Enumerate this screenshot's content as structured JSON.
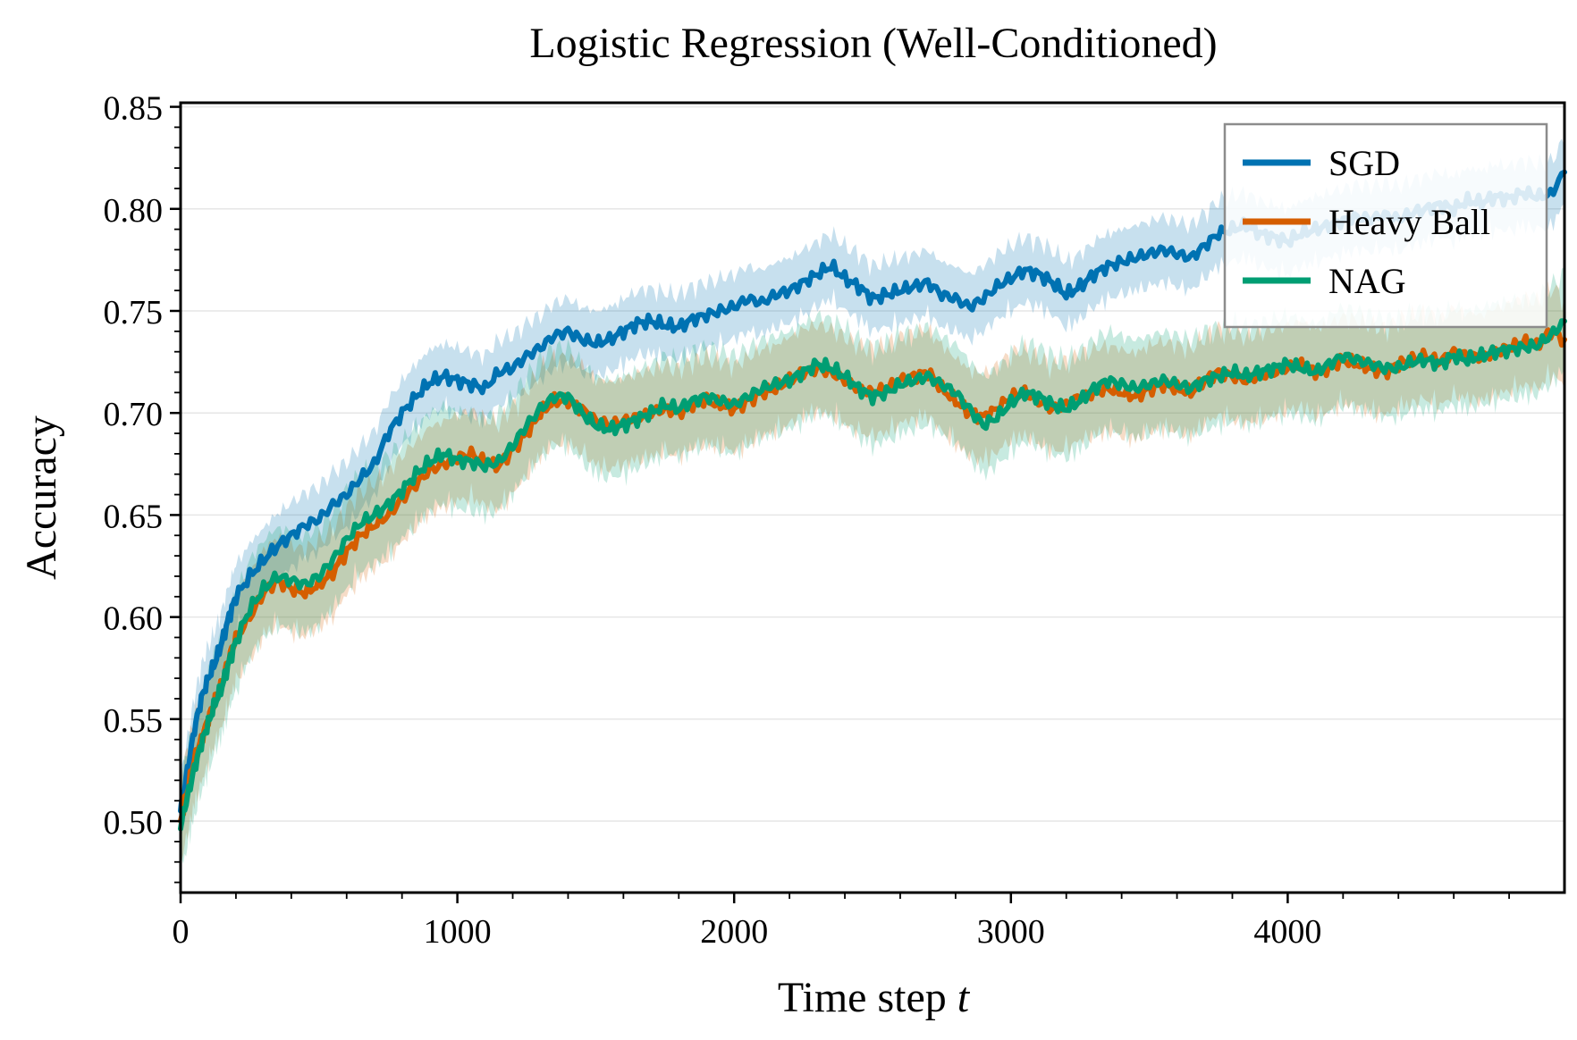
{
  "chart_data": {
    "type": "line",
    "title": "Logistic Regression (Well-Conditioned)",
    "xlabel": "Time step",
    "xlabel_var": "t",
    "ylabel": "Accuracy",
    "xlim": [
      0,
      5000
    ],
    "ylim": [
      0.465,
      0.852
    ],
    "xticks": [
      0,
      1000,
      2000,
      3000,
      4000
    ],
    "xtick_labels": [
      "0",
      "1000",
      "2000",
      "3000",
      "4000"
    ],
    "yticks": [
      0.5,
      0.55,
      0.6,
      0.65,
      0.7,
      0.75,
      0.8,
      0.85
    ],
    "ytick_labels": [
      "0.50",
      "0.55",
      "0.60",
      "0.65",
      "0.70",
      "0.75",
      "0.80",
      "0.85"
    ],
    "grid": "horizontal",
    "legend_position": "top-right",
    "series": [
      {
        "name": "SGD",
        "color": "#0072B2",
        "band": 0.012,
        "x": [
          0,
          25,
          50,
          75,
          100,
          125,
          150,
          175,
          200,
          250,
          300,
          350,
          400,
          450,
          500,
          550,
          600,
          650,
          700,
          750,
          800,
          850,
          900,
          950,
          1000,
          1050,
          1100,
          1150,
          1200,
          1250,
          1300,
          1350,
          1400,
          1450,
          1500,
          1550,
          1600,
          1650,
          1700,
          1750,
          1800,
          1850,
          1900,
          1950,
          2000,
          2050,
          2100,
          2150,
          2200,
          2250,
          2300,
          2350,
          2400,
          2450,
          2500,
          2550,
          2600,
          2650,
          2700,
          2750,
          2800,
          2850,
          2900,
          2950,
          3000,
          3050,
          3100,
          3150,
          3200,
          3250,
          3300,
          3350,
          3400,
          3450,
          3500,
          3550,
          3600,
          3650,
          3700,
          3750,
          3800,
          3850,
          3900,
          3950,
          4000,
          4050,
          4100,
          4150,
          4200,
          4250,
          4300,
          4350,
          4400,
          4450,
          4500,
          4550,
          4600,
          4650,
          4700,
          4750,
          4800,
          4850,
          4900,
          4950,
          5000
        ],
        "y": [
          0.505,
          0.525,
          0.545,
          0.56,
          0.57,
          0.578,
          0.588,
          0.6,
          0.61,
          0.62,
          0.628,
          0.635,
          0.64,
          0.645,
          0.648,
          0.655,
          0.66,
          0.668,
          0.675,
          0.69,
          0.7,
          0.708,
          0.715,
          0.718,
          0.716,
          0.714,
          0.712,
          0.72,
          0.722,
          0.728,
          0.732,
          0.738,
          0.74,
          0.736,
          0.734,
          0.736,
          0.74,
          0.744,
          0.745,
          0.743,
          0.742,
          0.746,
          0.748,
          0.75,
          0.752,
          0.756,
          0.754,
          0.758,
          0.76,
          0.764,
          0.768,
          0.772,
          0.766,
          0.762,
          0.756,
          0.758,
          0.76,
          0.762,
          0.764,
          0.758,
          0.756,
          0.752,
          0.756,
          0.762,
          0.766,
          0.77,
          0.768,
          0.764,
          0.758,
          0.762,
          0.768,
          0.772,
          0.774,
          0.776,
          0.778,
          0.78,
          0.778,
          0.776,
          0.782,
          0.788,
          0.79,
          0.792,
          0.788,
          0.786,
          0.784,
          0.788,
          0.79,
          0.792,
          0.794,
          0.796,
          0.795,
          0.797,
          0.795,
          0.798,
          0.8,
          0.802,
          0.8,
          0.804,
          0.803,
          0.806,
          0.805,
          0.808,
          0.806,
          0.807,
          0.818
        ]
      },
      {
        "name": "Heavy Ball",
        "color": "#D55E00",
        "band": 0.016,
        "x": [
          0,
          25,
          50,
          75,
          100,
          125,
          150,
          175,
          200,
          250,
          300,
          350,
          400,
          450,
          500,
          550,
          600,
          650,
          700,
          750,
          800,
          850,
          900,
          950,
          1000,
          1050,
          1100,
          1150,
          1200,
          1250,
          1300,
          1350,
          1400,
          1450,
          1500,
          1550,
          1600,
          1650,
          1700,
          1750,
          1800,
          1850,
          1900,
          1950,
          2000,
          2050,
          2100,
          2150,
          2200,
          2250,
          2300,
          2350,
          2400,
          2450,
          2500,
          2550,
          2600,
          2650,
          2700,
          2750,
          2800,
          2850,
          2900,
          2950,
          3000,
          3050,
          3100,
          3150,
          3200,
          3250,
          3300,
          3350,
          3400,
          3450,
          3500,
          3550,
          3600,
          3650,
          3700,
          3750,
          3800,
          3850,
          3900,
          3950,
          4000,
          4050,
          4100,
          4150,
          4200,
          4250,
          4300,
          4350,
          4400,
          4450,
          4500,
          4550,
          4600,
          4650,
          4700,
          4750,
          4800,
          4850,
          4900,
          4950,
          5000
        ],
        "y": [
          0.5,
          0.515,
          0.53,
          0.54,
          0.55,
          0.56,
          0.568,
          0.58,
          0.59,
          0.6,
          0.612,
          0.618,
          0.614,
          0.612,
          0.616,
          0.622,
          0.632,
          0.64,
          0.645,
          0.65,
          0.658,
          0.665,
          0.672,
          0.675,
          0.678,
          0.68,
          0.676,
          0.674,
          0.682,
          0.69,
          0.7,
          0.706,
          0.706,
          0.702,
          0.696,
          0.694,
          0.696,
          0.698,
          0.7,
          0.702,
          0.7,
          0.704,
          0.706,
          0.704,
          0.702,
          0.706,
          0.71,
          0.712,
          0.716,
          0.72,
          0.722,
          0.72,
          0.716,
          0.712,
          0.71,
          0.712,
          0.716,
          0.718,
          0.72,
          0.712,
          0.706,
          0.7,
          0.698,
          0.702,
          0.708,
          0.71,
          0.706,
          0.702,
          0.704,
          0.708,
          0.71,
          0.712,
          0.71,
          0.708,
          0.712,
          0.714,
          0.712,
          0.71,
          0.716,
          0.72,
          0.718,
          0.716,
          0.718,
          0.72,
          0.722,
          0.724,
          0.72,
          0.722,
          0.726,
          0.724,
          0.722,
          0.72,
          0.724,
          0.726,
          0.728,
          0.725,
          0.73,
          0.728,
          0.727,
          0.73,
          0.732,
          0.735,
          0.733,
          0.74,
          0.736
        ]
      },
      {
        "name": "NAG",
        "color": "#009E73",
        "band": 0.018,
        "x": [
          0,
          25,
          50,
          75,
          100,
          125,
          150,
          175,
          200,
          250,
          300,
          350,
          400,
          450,
          500,
          550,
          600,
          650,
          700,
          750,
          800,
          850,
          900,
          950,
          1000,
          1050,
          1100,
          1150,
          1200,
          1250,
          1300,
          1350,
          1400,
          1450,
          1500,
          1550,
          1600,
          1650,
          1700,
          1750,
          1800,
          1850,
          1900,
          1950,
          2000,
          2050,
          2100,
          2150,
          2200,
          2250,
          2300,
          2350,
          2400,
          2450,
          2500,
          2550,
          2600,
          2650,
          2700,
          2750,
          2800,
          2850,
          2900,
          2950,
          3000,
          3050,
          3100,
          3150,
          3200,
          3250,
          3300,
          3350,
          3400,
          3450,
          3500,
          3550,
          3600,
          3650,
          3700,
          3750,
          3800,
          3850,
          3900,
          3950,
          4000,
          4050,
          4100,
          4150,
          4200,
          4250,
          4300,
          4350,
          4400,
          4450,
          4500,
          4550,
          4600,
          4650,
          4700,
          4750,
          4800,
          4850,
          4900,
          4950,
          5000
        ],
        "y": [
          0.498,
          0.512,
          0.526,
          0.538,
          0.548,
          0.558,
          0.566,
          0.578,
          0.588,
          0.604,
          0.614,
          0.62,
          0.618,
          0.616,
          0.62,
          0.628,
          0.638,
          0.646,
          0.65,
          0.655,
          0.662,
          0.67,
          0.676,
          0.68,
          0.677,
          0.676,
          0.674,
          0.676,
          0.684,
          0.694,
          0.702,
          0.708,
          0.708,
          0.7,
          0.694,
          0.692,
          0.694,
          0.697,
          0.7,
          0.704,
          0.702,
          0.706,
          0.708,
          0.706,
          0.704,
          0.708,
          0.712,
          0.714,
          0.716,
          0.72,
          0.724,
          0.722,
          0.718,
          0.712,
          0.708,
          0.71,
          0.714,
          0.716,
          0.718,
          0.714,
          0.71,
          0.702,
          0.694,
          0.698,
          0.705,
          0.71,
          0.708,
          0.704,
          0.702,
          0.706,
          0.712,
          0.716,
          0.714,
          0.712,
          0.714,
          0.716,
          0.714,
          0.712,
          0.716,
          0.718,
          0.72,
          0.718,
          0.72,
          0.722,
          0.724,
          0.722,
          0.72,
          0.724,
          0.728,
          0.726,
          0.724,
          0.722,
          0.722,
          0.725,
          0.726,
          0.724,
          0.728,
          0.726,
          0.728,
          0.73,
          0.731,
          0.732,
          0.733,
          0.738,
          0.745
        ]
      }
    ]
  }
}
